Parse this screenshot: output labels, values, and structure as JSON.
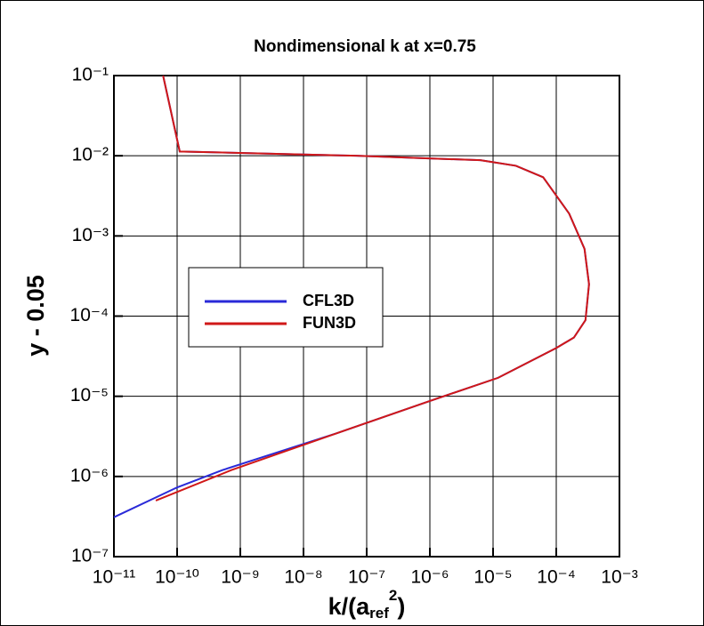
{
  "chart_data": {
    "type": "line",
    "title": "Nondimensional k at x=0.75",
    "x_label": [
      "k/(a",
      "ref",
      "2",
      ")"
    ],
    "y_label": "y - 0.05",
    "x_log": true,
    "y_log": true,
    "grid": true,
    "legend": "center-left",
    "xlim": [
      1e-11,
      0.001
    ],
    "ylim": [
      1e-07,
      0.1
    ],
    "xticks": [
      {
        "value": 1e-11,
        "label": "10⁻¹¹"
      },
      {
        "value": 1e-10,
        "label": "10⁻¹⁰"
      },
      {
        "value": 1e-09,
        "label": "10⁻⁹"
      },
      {
        "value": 1e-08,
        "label": "10⁻⁸"
      },
      {
        "value": 1e-07,
        "label": "10⁻⁷"
      },
      {
        "value": 1e-06,
        "label": "10⁻⁶"
      },
      {
        "value": 1e-05,
        "label": "10⁻⁵"
      },
      {
        "value": 0.0001,
        "label": "10⁻⁴"
      },
      {
        "value": 0.001,
        "label": "10⁻³"
      }
    ],
    "yticks": [
      {
        "value": 1e-07,
        "label": "10⁻⁷"
      },
      {
        "value": 1e-06,
        "label": "10⁻⁶"
      },
      {
        "value": 1e-05,
        "label": "10⁻⁵"
      },
      {
        "value": 0.0001,
        "label": "10⁻⁴"
      },
      {
        "value": 0.001,
        "label": "10⁻³"
      },
      {
        "value": 0.01,
        "label": "10⁻²"
      },
      {
        "value": 0.1,
        "label": "10⁻¹"
      }
    ],
    "series": [
      {
        "name": "CFL3D",
        "color": "#2a2ad8",
        "x": [
          6e-11,
          1.1e-10,
          6.8e-08,
          6.3e-06,
          2.3e-05,
          6.2e-05,
          0.00016,
          0.00028,
          0.00033,
          0.00029,
          0.00019,
          0.0001,
          1.2e-05,
          9e-07,
          3.5e-08,
          5.2e-10,
          1e-10,
          1e-11
        ],
        "values": [
          0.1,
          0.0113,
          0.01,
          0.0088,
          0.0075,
          0.0054,
          0.0019,
          0.00069,
          0.00025,
          8.9e-05,
          5.4e-05,
          4e-05,
          1.7e-05,
          8.5e-06,
          3.5e-06,
          1.2e-06,
          7.3e-07,
          3.1e-07
        ]
      },
      {
        "name": "FUN3D",
        "color": "#d01818",
        "x": [
          6e-11,
          1.1e-10,
          6.8e-08,
          6.3e-06,
          2.3e-05,
          6.2e-05,
          0.00016,
          0.00028,
          0.00033,
          0.00029,
          0.00019,
          0.0001,
          1.2e-05,
          9e-07,
          3.5e-08,
          7.2e-10,
          4.6e-11
        ],
        "values": [
          0.1,
          0.0113,
          0.01,
          0.0088,
          0.0075,
          0.0054,
          0.0019,
          0.00069,
          0.00025,
          8.9e-05,
          5.4e-05,
          4e-05,
          1.7e-05,
          8.5e-06,
          3.5e-06,
          1.2e-06,
          5e-07
        ]
      }
    ]
  }
}
